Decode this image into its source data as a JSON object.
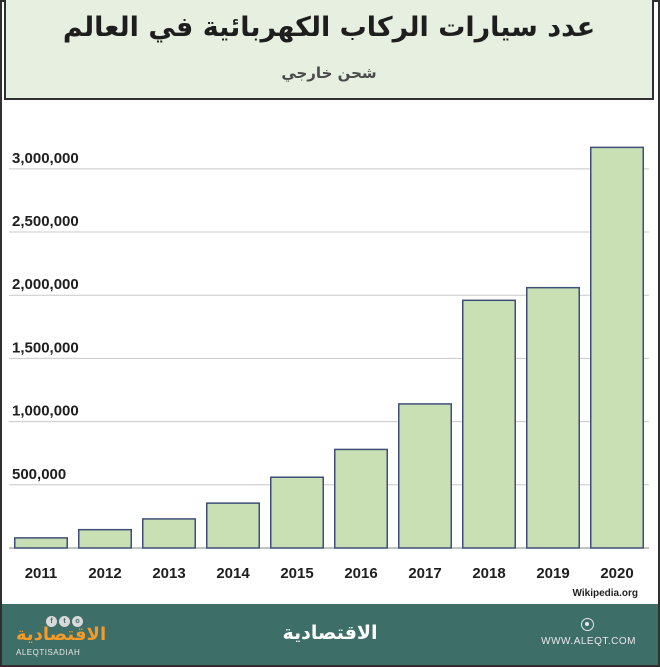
{
  "header": {
    "title": "عدد سيارات الركاب الكهربائية في العالم",
    "subtitle": "شحن خارجي"
  },
  "source": "Wikipedia.org",
  "footer": {
    "logo_left": "الاقتصادية",
    "logo_latin": "ALEQTISADIAH",
    "logo_center": "الاقتصادية",
    "url": "WWW.ALEQT.COM"
  },
  "colors": {
    "bar_fill": "#c8e0b4",
    "bar_stroke": "#3e4f78",
    "header_bg": "#e6efe0",
    "footer_bg": "#3d6e68",
    "grid": "#c8c8c8"
  },
  "chart_data": {
    "type": "bar",
    "categories": [
      "2011",
      "2012",
      "2013",
      "2014",
      "2015",
      "2016",
      "2017",
      "2018",
      "2019",
      "2020"
    ],
    "values": [
      80000,
      145000,
      230000,
      355000,
      560000,
      780000,
      1140000,
      1960000,
      2060000,
      3170000
    ],
    "yticks": [
      500000,
      1000000,
      1500000,
      2000000,
      2500000,
      3000000
    ],
    "ytick_labels": [
      "500,000",
      "1,000,000",
      "1,500,000",
      "2,000,000",
      "2,500,000",
      "3,000,000"
    ],
    "ylim": [
      0,
      3450000
    ],
    "grid": true,
    "xlabel": "",
    "ylabel": ""
  }
}
